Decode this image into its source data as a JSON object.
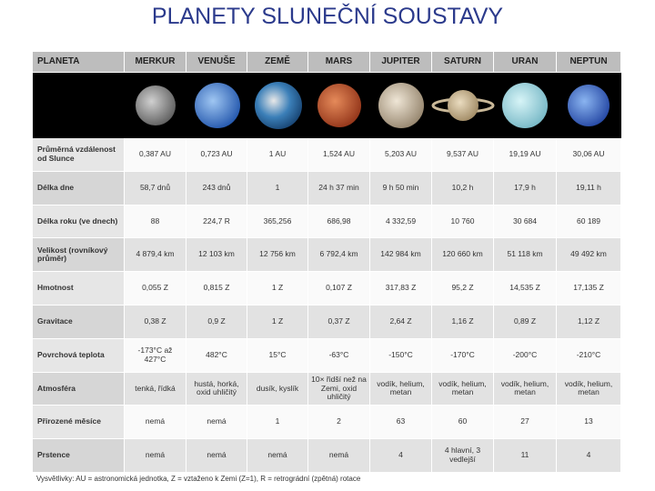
{
  "header": {
    "title": "PLANETY SLUNEČNÍ SOUSTAVY"
  },
  "table": {
    "columns": [
      "PLANETA",
      "MERKUR",
      "VENUŠE",
      "ZEMĚ",
      "MARS",
      "JUPITER",
      "SATURN",
      "URAN",
      "NEPTUN"
    ],
    "rows": [
      [
        "Průměrná vzdálenost od Slunce",
        "0,387 AU",
        "0,723 AU",
        "1 AU",
        "1,524 AU",
        "5,203 AU",
        "9,537 AU",
        "19,19 AU",
        "30,06 AU"
      ],
      [
        "Délka dne",
        "58,7 dnů",
        "243 dnů",
        "1",
        "24 h 37 min",
        "9 h 50 min",
        "10,2 h",
        "17,9 h",
        "19,11 h"
      ],
      [
        "Délka roku (ve dnech)",
        "88",
        "224,7 R",
        "365,256",
        "686,98",
        "4 332,59",
        "10 760",
        "30 684",
        "60 189"
      ],
      [
        "Velikost (rovníkový průměr)",
        "4 879,4 km",
        "12 103 km",
        "12 756 km",
        "6 792,4 km",
        "142 984 km",
        "120 660 km",
        "51 118 km",
        "49 492 km"
      ],
      [
        "Hmotnost",
        "0,055 Z",
        "0,815 Z",
        "1 Z",
        "0,107 Z",
        "317,83 Z",
        "95,2 Z",
        "14,535 Z",
        "17,135 Z"
      ],
      [
        "Gravitace",
        "0,38 Z",
        "0,9 Z",
        "1 Z",
        "0,37 Z",
        "2,64 Z",
        "1,16 Z",
        "0,89 Z",
        "1,12 Z"
      ],
      [
        "Povrchová teplota",
        "-173°C až 427°C",
        "482°C",
        "15°C",
        "-63°C",
        "-150°C",
        "-170°C",
        "-200°C",
        "-210°C"
      ],
      [
        "Atmosféra",
        "tenká, řídká",
        "hustá, horká, oxid uhličitý",
        "dusík, kyslík",
        "10× řidší než na Zemi, oxid uhličitý",
        "vodík, helium, metan",
        "vodík, helium, metan",
        "vodík, helium, metan",
        "vodík, helium, metan"
      ],
      [
        "Přirozené měsíce",
        "nemá",
        "nemá",
        "1",
        "2",
        "63",
        "60",
        "27",
        "13"
      ],
      [
        "Prstence",
        "nemá",
        "nemá",
        "nemá",
        "nemá",
        "4",
        "4 hlavní, 3 vedlejší",
        "11",
        "4"
      ]
    ]
  },
  "footnote": "Vysvětlivky: AU = astronomická jednotka, Z = vztaženo k Zemi (Z=1), R = retrográdní (zpětná) rotace"
}
